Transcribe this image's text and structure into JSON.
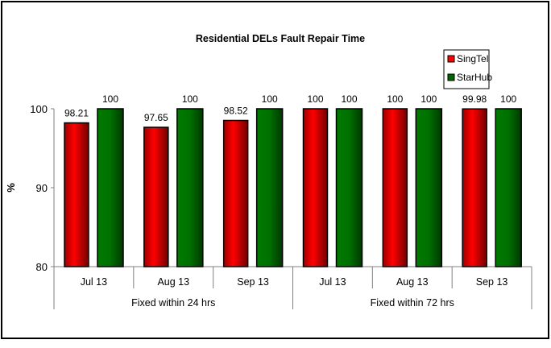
{
  "chart_data": {
    "type": "bar",
    "title": "Residential DELs Fault Repair Time",
    "ylabel": "%",
    "xlabel": "",
    "ylim": [
      80,
      100
    ],
    "yticks": [
      80,
      90,
      100
    ],
    "grid": false,
    "legend_position": "top-right",
    "categories": [
      "Jul 13",
      "Aug 13",
      "Sep 13",
      "Jul 13",
      "Aug 13",
      "Sep 13"
    ],
    "groups": [
      {
        "label": "Fixed within 24 hrs",
        "span": 3
      },
      {
        "label": "Fixed within 72 hrs",
        "span": 3
      }
    ],
    "series": [
      {
        "name": "SingTel",
        "color": "#ff0000",
        "values": [
          98.21,
          97.65,
          98.52,
          100,
          100,
          99.98
        ],
        "labels": [
          "98.21",
          "97.65",
          "98.52",
          "100",
          "100",
          "99.98"
        ]
      },
      {
        "name": "StarHub",
        "color": "#008000",
        "values": [
          100,
          100,
          100,
          100,
          100,
          100
        ],
        "labels": [
          "100",
          "100",
          "100",
          "100",
          "100",
          "100"
        ]
      }
    ]
  }
}
